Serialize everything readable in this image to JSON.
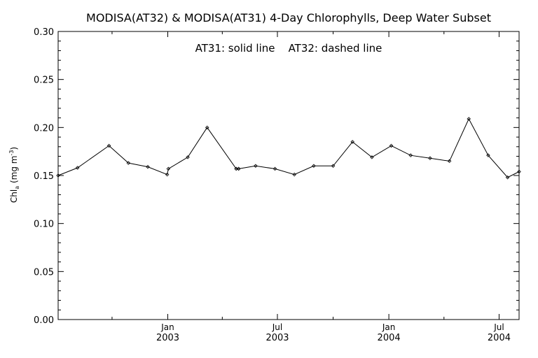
{
  "chart_data": {
    "type": "line",
    "title": "MODISA(AT32) & MODISA(AT31) 4-Day Chlorophylls, Deep Water Subset",
    "annotation": "AT31: solid line    AT32: dashed line",
    "ylabel": {
      "prefix": "Chl",
      "subscript": "a",
      "unit": "(mg m",
      "superscript": "-3",
      "suffix": ")"
    },
    "ylim": [
      0.0,
      0.3
    ],
    "yticks": [
      "0.00",
      "0.05",
      "0.10",
      "0.15",
      "0.20",
      "0.25",
      "0.30"
    ],
    "xlim": [
      "2002-07-04",
      "2004-08-03"
    ],
    "xticks": [
      {
        "date": "2003-01-01",
        "month": "Jan",
        "year": "2003"
      },
      {
        "date": "2003-07-01",
        "month": "Jul",
        "year": "2003"
      },
      {
        "date": "2004-01-01",
        "month": "Jan",
        "year": "2004"
      },
      {
        "date": "2004-07-01",
        "month": "Jul",
        "year": "2004"
      }
    ],
    "grid": false,
    "series": [
      {
        "name": "AT31",
        "style": "solid",
        "x": [
          "2002-07-04",
          "2002-08-05",
          "2002-09-26",
          "2002-10-28",
          "2002-11-29",
          "2002-12-31",
          "2003-01-02",
          "2003-02-03",
          "2003-03-07",
          "2003-04-24",
          "2003-04-28",
          "2003-05-26",
          "2003-06-27",
          "2003-07-29",
          "2003-08-30",
          "2003-10-01",
          "2003-11-02",
          "2003-12-04",
          "2004-01-05",
          "2004-02-06",
          "2004-03-09",
          "2004-04-10",
          "2004-05-12",
          "2004-06-13",
          "2004-07-15",
          "2004-08-03"
        ],
        "values": [
          0.15,
          0.158,
          0.181,
          0.163,
          0.159,
          0.151,
          0.157,
          0.169,
          0.2,
          0.157,
          0.157,
          0.16,
          0.157,
          0.151,
          0.16,
          0.16,
          0.185,
          0.169,
          0.181,
          0.171,
          0.168,
          0.165,
          0.209,
          0.171,
          0.148,
          0.154
        ]
      },
      {
        "name": "AT32",
        "style": "dashed",
        "x": [
          "2003-04-24",
          "2003-04-28"
        ],
        "values": [
          0.157,
          0.157
        ]
      }
    ]
  }
}
